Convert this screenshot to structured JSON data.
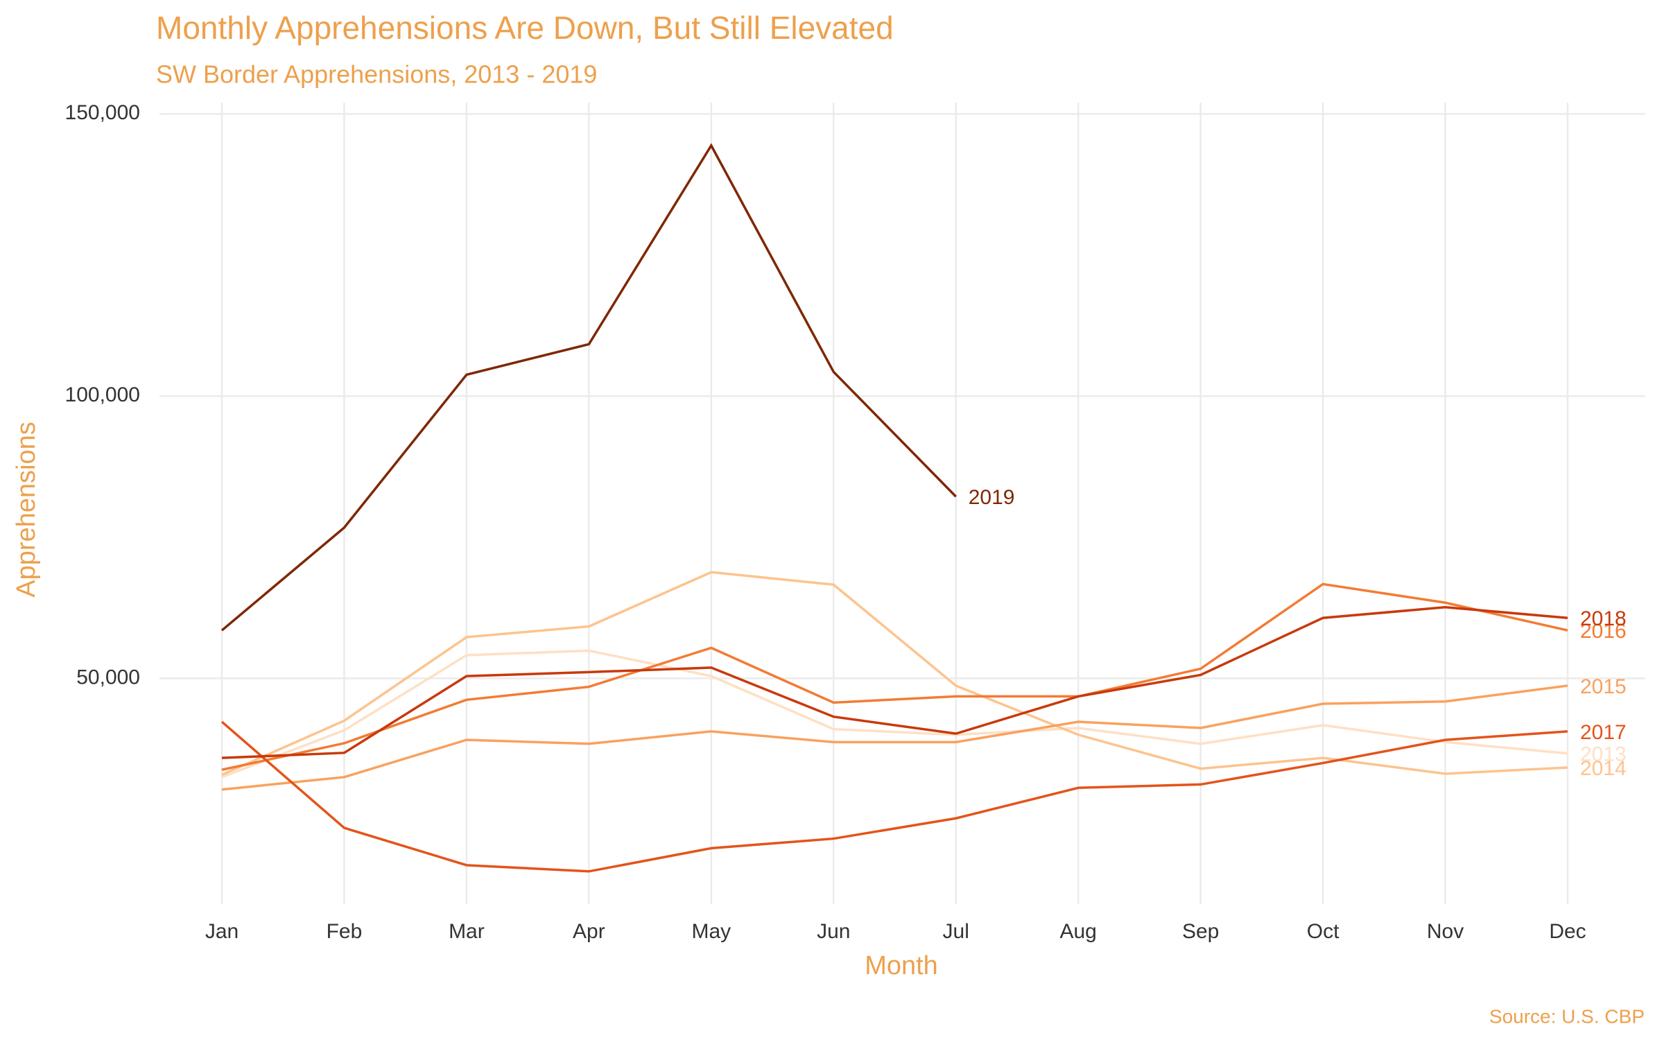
{
  "chart_data": {
    "type": "line",
    "title": "Monthly Apprehensions Are Down, But Still Elevated",
    "subtitle": "SW Border Apprehensions, 2013 - 2019",
    "x_label": "Month",
    "y_label": "Apprehensions",
    "source": "Source: U.S. CBP",
    "categories": [
      "Jan",
      "Feb",
      "Mar",
      "Apr",
      "May",
      "Jun",
      "Jul",
      "Aug",
      "Sep",
      "Oct",
      "Nov",
      "Dec"
    ],
    "ylim": [
      10000,
      152000
    ],
    "yticks": [
      {
        "value": 50000,
        "label": "50,000"
      },
      {
        "value": 100000,
        "label": "100,000"
      },
      {
        "value": 150000,
        "label": "150,000"
      }
    ],
    "grid": true,
    "series": [
      {
        "name": "2013",
        "color": "#fde0c5",
        "values": [
          32500,
          40800,
          54100,
          54900,
          50400,
          41000,
          40000,
          41200,
          38400,
          41700,
          38700,
          36700
        ]
      },
      {
        "name": "2014",
        "color": "#fdc38e",
        "values": [
          32900,
          42500,
          57300,
          59200,
          68800,
          66600,
          48700,
          40000,
          34000,
          35900,
          33100,
          34200
        ]
      },
      {
        "name": "2015",
        "color": "#f9a15e",
        "values": [
          30300,
          32500,
          39100,
          38400,
          40600,
          38700,
          38700,
          42300,
          41200,
          45500,
          45900,
          48700
        ]
      },
      {
        "name": "2016",
        "color": "#f37b34",
        "values": [
          33800,
          38500,
          46200,
          48500,
          55400,
          45700,
          46800,
          46800,
          51700,
          66700,
          63400,
          58500
        ]
      },
      {
        "name": "2017",
        "color": "#e3541a",
        "values": [
          42300,
          23500,
          16900,
          15800,
          19900,
          21600,
          25200,
          30600,
          31200,
          35000,
          39100,
          40600
        ]
      },
      {
        "name": "2018",
        "color": "#c8390b",
        "values": [
          35900,
          36800,
          50400,
          51100,
          51900,
          43200,
          40200,
          46800,
          50600,
          60700,
          62600,
          60700
        ]
      },
      {
        "name": "2019",
        "color": "#7f2704",
        "values": [
          58500,
          76700,
          103800,
          109200,
          144400,
          104300,
          82200,
          null,
          null,
          null,
          null,
          null
        ]
      }
    ]
  }
}
